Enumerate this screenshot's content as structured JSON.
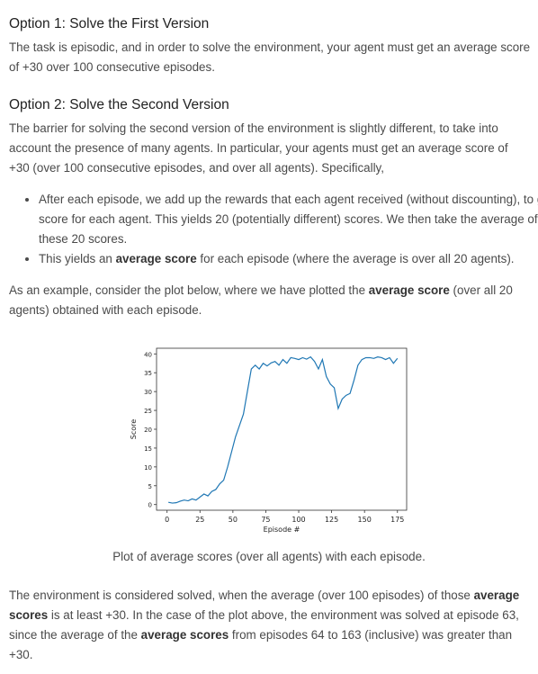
{
  "sections": [
    {
      "heading": "Option 1: Solve the First Version",
      "text": "The task is episodic, and in order to solve the environment, your agent must get an average score of +30 over 100 consecutive episodes."
    },
    {
      "heading": "Option 2: Solve the Second Version",
      "text": "The barrier for solving the second version of the environment is slightly different, to take into account the presence of many agents. In particular, your agents must get an average score of +30 (over 100 consecutive episodes, and over all agents). Specifically,"
    }
  ],
  "bullets": [
    [
      "After each episode, we add up the rewards that each agent received (without discounting), to get a score for each agent. This yields 20 (potentially different) scores. We then take the average of these 20 scores."
    ],
    [
      "This yields an ",
      "average score",
      " for each episode (where the average is over all 20 agents)."
    ]
  ],
  "example": [
    "As an example, consider the plot below, where we have plotted the ",
    "average score",
    " (over all 20 agents) obtained with each episode."
  ],
  "chart_data": {
    "type": "line",
    "xlabel": "Episode #",
    "ylabel": "Score",
    "x": [
      1,
      4,
      7,
      10,
      13,
      16,
      19,
      22,
      25,
      28,
      31,
      34,
      37,
      40,
      43,
      46,
      49,
      52,
      55,
      58,
      61,
      64,
      67,
      70,
      73,
      76,
      79,
      82,
      85,
      88,
      91,
      94,
      97,
      100,
      103,
      106,
      109,
      112,
      115,
      118,
      121,
      124,
      127,
      130,
      133,
      136,
      139,
      142,
      145,
      148,
      151,
      154,
      157,
      160,
      163,
      166,
      169,
      172,
      175
    ],
    "series": [
      {
        "name": "Score",
        "color": "#1f77b4",
        "values": [
          0.6,
          0.4,
          0.5,
          0.9,
          1.2,
          1.0,
          1.5,
          1.2,
          2.0,
          2.8,
          2.3,
          3.5,
          4.0,
          5.5,
          6.5,
          10,
          14,
          18,
          21,
          24,
          30,
          36,
          37,
          36,
          37.5,
          36.8,
          37.6,
          38,
          37,
          38.5,
          37.5,
          39,
          38.8,
          38.5,
          39,
          38.6,
          39.2,
          38,
          36,
          38.5,
          34,
          32,
          31,
          25.5,
          28,
          29,
          29.5,
          33,
          37,
          38.5,
          39,
          39,
          38.8,
          39.2,
          39,
          38.5,
          39,
          37.5,
          38.8
        ]
      }
    ],
    "xlim": [
      -8,
      182
    ],
    "ylim": [
      -1.5,
      41.5
    ],
    "xticks": [
      0,
      25,
      50,
      75,
      100,
      125,
      150,
      175
    ],
    "yticks": [
      0,
      5,
      10,
      15,
      20,
      25,
      30,
      35,
      40
    ]
  },
  "caption": "Plot of average scores (over all agents) with each episode.",
  "conclusion": [
    "The environment is considered solved, when the average (over 100 episodes) of those ",
    "average scores",
    " is at least +30. In the case of the plot above, the environment was solved at episode 63, since the average of the ",
    "average scores",
    " from episodes 64 to 163 (inclusive) was greater than +30."
  ]
}
